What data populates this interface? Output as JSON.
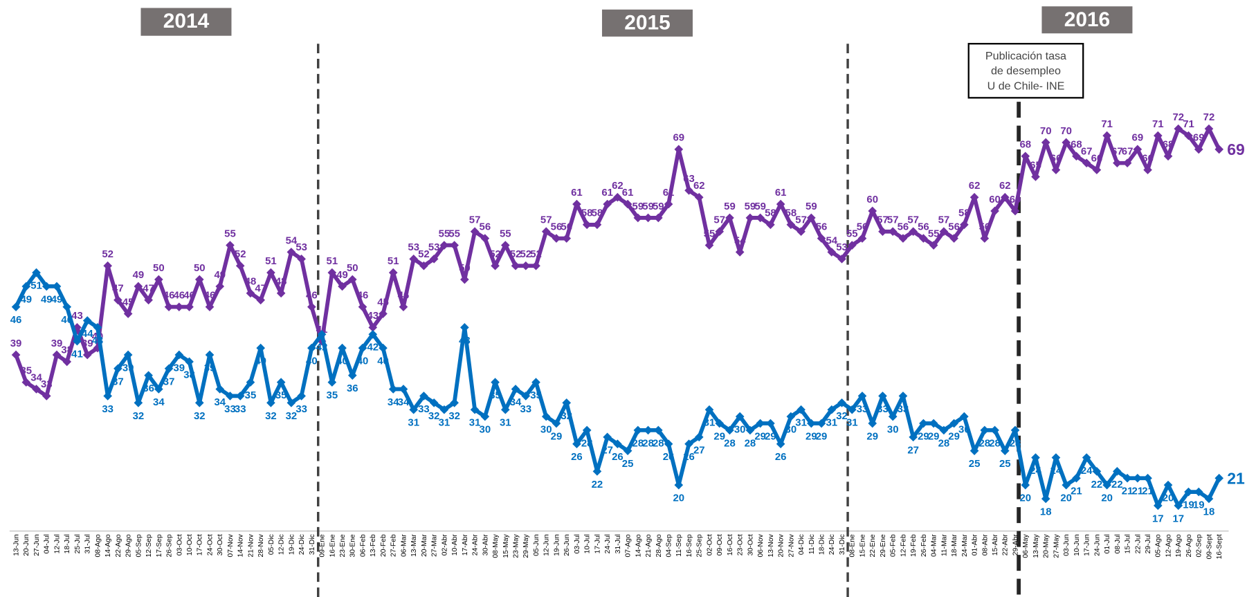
{
  "chart_data": {
    "type": "line",
    "year_labels": [
      "2014",
      "2015",
      "2016"
    ],
    "annotation": [
      "Publicación tasa",
      "de desempleo",
      "U de Chile- INE"
    ],
    "categories": [
      "13-Jun",
      "20-Jun",
      "27-Jun",
      "04-Jul",
      "12-Jul",
      "18-Jul",
      "25-Jul",
      "31-Jul",
      "08-Ago",
      "14-Ago",
      "22-Ago",
      "29-Ago",
      "05-Sep",
      "12-Sep",
      "17-Sep",
      "26-Sep",
      "03-Oct",
      "10-Oct",
      "17-Oct",
      "24-Oct",
      "30-Oct",
      "07-Nov",
      "14-Nov",
      "21-Nov",
      "28-Nov",
      "05-Dic",
      "12-Dic",
      "19-Dic",
      "24-Dic",
      "31-Dic",
      "09-Ene",
      "16-Ene",
      "23-Ene",
      "30-Ene",
      "06-Feb",
      "13-Feb",
      "20-Feb",
      "27-Feb",
      "06-Mar",
      "13-Mar",
      "20-Mar",
      "27-Mar",
      "02-Abr",
      "10-Abr",
      "17-Abr",
      "24-Abr",
      "30-Abr",
      "08-May",
      "15-May",
      "23-May",
      "29-May",
      "05-Jun",
      "12-Jun",
      "19-Jun",
      "26-Jun",
      "03-Jul",
      "10-Jul",
      "17-Jul",
      "24-Jul",
      "31-Jul",
      "07-Ago",
      "14-Ago",
      "21-Ago",
      "28-Ago",
      "04-Sep",
      "11-Sep",
      "16-Sep",
      "25-Sep",
      "02-Oct",
      "09-Oct",
      "16-Oct",
      "23-Oct",
      "30-Oct",
      "06-Nov",
      "13-Nov",
      "20-Nov",
      "27-Nov",
      "04-Dic",
      "11-Dic",
      "18-Dic",
      "24-Dic",
      "31-Dic",
      "08-Ene",
      "15-Ene",
      "22-Ene",
      "29-Ene",
      "05-Feb",
      "12-Feb",
      "19-Feb",
      "26-Feb",
      "04-Mar",
      "11-Mar",
      "18-Mar",
      "24-Mar",
      "01-Abr",
      "08-Abr",
      "15-Abr",
      "22-Abr",
      "29-Abr",
      "06-May",
      "13-May",
      "20-May",
      "27-May",
      "03-Jun",
      "10-Jun",
      "17-Jun",
      "24-Jun",
      "01-Jul",
      "08-Jul",
      "15-Jul",
      "22-Jul",
      "29-Jul",
      "05-Ago",
      "12-Ago",
      "19-Ago",
      "26-Ago",
      "02-Sep",
      "09-Sept",
      "16-Sept"
    ],
    "series": [
      {
        "color": "#7030a0",
        "values": [
          39,
          35,
          34,
          33,
          39,
          38,
          43,
          39,
          40,
          52,
          47,
          45,
          49,
          47,
          50,
          46,
          46,
          46,
          50,
          46,
          49,
          55,
          52,
          48,
          47,
          51,
          48,
          54,
          53,
          46,
          41,
          51,
          49,
          50,
          46,
          43,
          45,
          51,
          46,
          53,
          52,
          53,
          55,
          55,
          50,
          57,
          56,
          52,
          55,
          52,
          52,
          52,
          57,
          56,
          56,
          61,
          58,
          58,
          61,
          62,
          61,
          59,
          59,
          59,
          61,
          69,
          63,
          62,
          55,
          57,
          59,
          54,
          59,
          59,
          58,
          61,
          58,
          57,
          59,
          56,
          54,
          53,
          55,
          56,
          60,
          57,
          57,
          56,
          57,
          56,
          55,
          57,
          56,
          58,
          62,
          56,
          60,
          62,
          60,
          68,
          65,
          70,
          66,
          70,
          68,
          67,
          66,
          71,
          67,
          67,
          69,
          66,
          71,
          68,
          72,
          71,
          69,
          72,
          69
        ]
      },
      {
        "color": "#0070c0",
        "values": [
          46,
          49,
          51,
          49,
          49,
          46,
          41,
          44,
          43,
          33,
          37,
          39,
          32,
          36,
          34,
          37,
          39,
          38,
          32,
          39,
          34,
          33,
          33,
          35,
          40,
          32,
          35,
          32,
          33,
          40,
          42,
          35,
          40,
          36,
          40,
          42,
          40,
          34,
          34,
          31,
          33,
          32,
          31,
          32,
          43,
          31,
          30,
          35,
          31,
          34,
          33,
          35,
          30,
          29,
          32,
          26,
          28,
          22,
          27,
          26,
          25,
          28,
          28,
          28,
          26,
          20,
          26,
          27,
          31,
          29,
          28,
          30,
          28,
          29,
          29,
          26,
          30,
          31,
          29,
          29,
          31,
          32,
          31,
          33,
          29,
          33,
          30,
          33,
          27,
          29,
          29,
          28,
          29,
          30,
          25,
          28,
          28,
          25,
          28,
          20,
          24,
          18,
          24,
          20,
          21,
          24,
          22,
          20,
          22,
          21,
          21,
          21,
          17,
          20,
          17,
          19,
          19,
          18,
          21
        ]
      }
    ]
  }
}
